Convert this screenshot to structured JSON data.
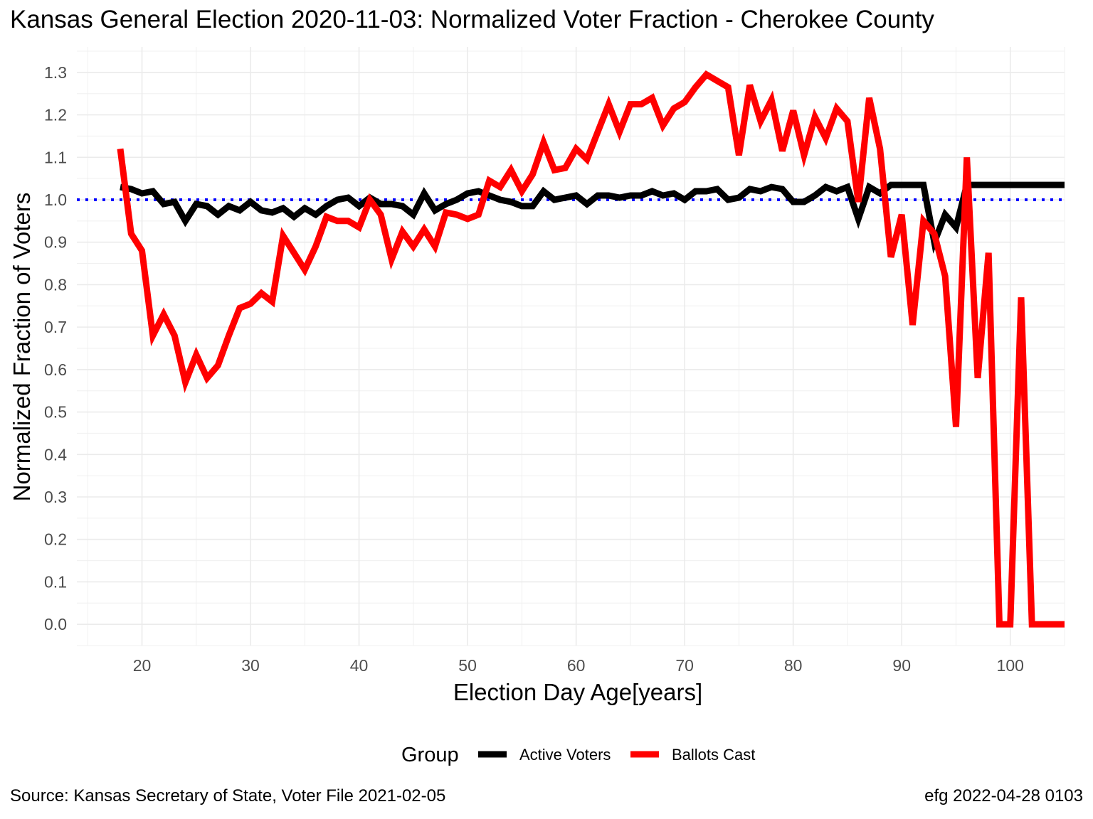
{
  "title": "Kansas General Election 2020-11-03:  Normalized Voter Fraction - Cherokee County",
  "caption_left": "Source:  Kansas Secretary of State, Voter File  2021-02-05",
  "caption_right": "efg 2022-04-28 0103",
  "chart_data": {
    "type": "line",
    "xlabel": "Election Day Age[years]",
    "ylabel": "Normalized Fraction of Voters",
    "xlim": [
      14,
      105
    ],
    "ylim": [
      -0.05,
      1.36
    ],
    "x_ticks": [
      20,
      30,
      40,
      50,
      60,
      70,
      80,
      90,
      100
    ],
    "y_ticks": [
      0.0,
      0.1,
      0.2,
      0.3,
      0.4,
      0.5,
      0.6,
      0.7,
      0.8,
      0.9,
      1.0,
      1.1,
      1.2,
      1.3
    ],
    "y_tick_labels": [
      "0.0",
      "0.1",
      "0.2",
      "0.3",
      "0.4",
      "0.5",
      "0.6",
      "0.7",
      "0.8",
      "0.9",
      "1.0",
      "1.1",
      "1.2",
      "1.3"
    ],
    "grid": true,
    "reference_line": {
      "y": 1.0,
      "color": "#0000ff",
      "style": "dotted"
    },
    "legend": {
      "title": "Group",
      "position": "bottom"
    },
    "x": [
      18,
      19,
      20,
      21,
      22,
      23,
      24,
      25,
      26,
      27,
      28,
      29,
      30,
      31,
      32,
      33,
      34,
      35,
      36,
      37,
      38,
      39,
      40,
      41,
      42,
      43,
      44,
      45,
      46,
      47,
      48,
      49,
      50,
      51,
      52,
      53,
      54,
      55,
      56,
      57,
      58,
      59,
      60,
      61,
      62,
      63,
      64,
      65,
      66,
      67,
      68,
      69,
      70,
      71,
      72,
      73,
      74,
      75,
      76,
      77,
      78,
      79,
      80,
      81,
      82,
      83,
      84,
      85,
      86,
      87,
      88,
      89,
      90,
      91,
      92,
      93,
      94,
      95,
      96,
      97,
      98,
      99,
      100,
      101,
      102,
      103,
      104,
      105
    ],
    "series": [
      {
        "name": "Active Voters",
        "color": "#000000",
        "values": [
          1.03,
          1.025,
          1.015,
          1.02,
          0.99,
          0.995,
          0.95,
          0.99,
          0.985,
          0.965,
          0.985,
          0.975,
          0.995,
          0.975,
          0.97,
          0.98,
          0.96,
          0.98,
          0.965,
          0.985,
          1.0,
          1.005,
          0.985,
          1.005,
          0.99,
          0.99,
          0.985,
          0.965,
          1.015,
          0.975,
          0.99,
          1.0,
          1.015,
          1.02,
          1.01,
          1.0,
          0.995,
          0.985,
          0.985,
          1.02,
          1.0,
          1.005,
          1.01,
          0.99,
          1.01,
          1.01,
          1.005,
          1.01,
          1.01,
          1.02,
          1.01,
          1.015,
          1.0,
          1.02,
          1.02,
          1.025,
          1.0,
          1.005,
          1.025,
          1.02,
          1.03,
          1.025,
          0.995,
          0.995,
          1.01,
          1.03,
          1.02,
          1.03,
          0.955,
          1.03,
          1.015,
          1.035,
          1.035,
          1.035,
          1.035,
          0.9,
          0.965,
          0.935,
          1.035,
          1.035,
          1.035,
          1.035,
          1.035,
          1.035,
          1.035,
          1.035,
          1.035,
          1.035
        ]
      },
      {
        "name": "Ballots Cast",
        "color": "#ff0000",
        "values": [
          1.12,
          0.92,
          0.88,
          0.68,
          0.73,
          0.68,
          0.57,
          0.635,
          0.58,
          0.61,
          0.68,
          0.745,
          0.755,
          0.78,
          0.76,
          0.915,
          0.875,
          0.835,
          0.89,
          0.96,
          0.95,
          0.95,
          0.935,
          1.0,
          0.965,
          0.86,
          0.925,
          0.89,
          0.93,
          0.89,
          0.97,
          0.965,
          0.955,
          0.965,
          1.045,
          1.03,
          1.07,
          1.02,
          1.06,
          1.135,
          1.07,
          1.075,
          1.12,
          1.095,
          1.16,
          1.225,
          1.16,
          1.225,
          1.225,
          1.24,
          1.175,
          1.215,
          1.23,
          1.265,
          1.295,
          1.28,
          1.265,
          1.105,
          1.27,
          1.185,
          1.235,
          1.115,
          1.21,
          1.105,
          1.195,
          1.145,
          1.215,
          1.185,
          0.995,
          1.24,
          1.12,
          0.865,
          0.965,
          0.705,
          0.95,
          0.92,
          0.82,
          0.465,
          1.1,
          0.58,
          0.875,
          0.0,
          0.0,
          0.77,
          0.0,
          0.0,
          0.0,
          0.0
        ]
      }
    ]
  }
}
